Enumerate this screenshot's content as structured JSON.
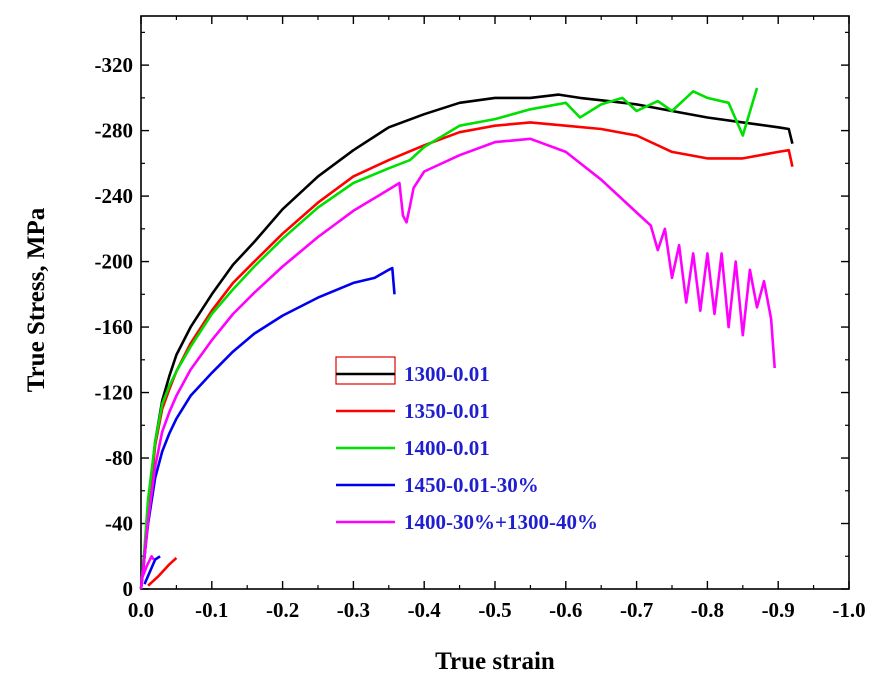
{
  "chart_data": {
    "type": "line",
    "xlabel": "True strain",
    "ylabel": "True Stress, MPa",
    "xlim": [
      0.0,
      -1.0
    ],
    "ylim": [
      0,
      -350
    ],
    "x_ticks": [
      "0.0",
      "-0.1",
      "-0.2",
      "-0.3",
      "-0.4",
      "-0.5",
      "-0.6",
      "-0.7",
      "-0.8",
      "-0.9",
      "-1.0"
    ],
    "y_ticks": [
      "0",
      "-40",
      "-80",
      "-120",
      "-160",
      "-200",
      "-240",
      "-280",
      "-320"
    ],
    "legend_position": "center-left",
    "series": [
      {
        "name": "1300-0.01",
        "color": "#000000",
        "x": [
          0,
          -0.005,
          -0.01,
          -0.015,
          -0.02,
          -0.03,
          -0.04,
          -0.05,
          -0.07,
          -0.1,
          -0.13,
          -0.16,
          -0.2,
          -0.25,
          -0.3,
          -0.35,
          -0.4,
          -0.45,
          -0.5,
          -0.55,
          -0.59,
          -0.62,
          -0.66,
          -0.7,
          -0.75,
          -0.8,
          -0.85,
          -0.9,
          -0.915,
          -0.92
        ],
        "y": [
          0,
          -20,
          -45,
          -70,
          -90,
          -115,
          -130,
          -143,
          -160,
          -180,
          -198,
          -212,
          -232,
          -252,
          -268,
          -282,
          -290,
          -297,
          -300,
          -300,
          -302,
          -300,
          -298,
          -296,
          -292,
          -288,
          -285,
          -282,
          -281,
          -272
        ]
      },
      {
        "name": "1350-0.01",
        "color": "#ff0000",
        "x": [
          0,
          -0.005,
          -0.01,
          -0.02,
          -0.03,
          -0.04,
          -0.05,
          -0.07,
          -0.1,
          -0.13,
          -0.16,
          -0.2,
          -0.25,
          -0.3,
          -0.35,
          -0.4,
          -0.45,
          -0.5,
          -0.55,
          -0.6,
          -0.65,
          -0.7,
          -0.75,
          -0.8,
          -0.85,
          -0.9,
          -0.915,
          -0.92
        ],
        "y": [
          0,
          -20,
          -45,
          -88,
          -110,
          -122,
          -133,
          -150,
          -170,
          -187,
          -200,
          -217,
          -236,
          -252,
          -262,
          -271,
          -279,
          -283,
          -285,
          -283,
          -281,
          -277,
          -267,
          -263,
          -263,
          -267,
          -268,
          -258
        ]
      },
      {
        "name": "1400-0.01",
        "color": "#00e000",
        "x": [
          0,
          -0.005,
          -0.01,
          -0.02,
          -0.03,
          -0.04,
          -0.05,
          -0.07,
          -0.1,
          -0.13,
          -0.16,
          -0.2,
          -0.25,
          -0.3,
          -0.35,
          -0.38,
          -0.4,
          -0.45,
          -0.5,
          -0.55,
          -0.6,
          -0.62,
          -0.65,
          -0.68,
          -0.7,
          -0.73,
          -0.75,
          -0.78,
          -0.8,
          -0.83,
          -0.85,
          -0.87
        ],
        "y": [
          0,
          -25,
          -55,
          -90,
          -113,
          -124,
          -133,
          -148,
          -168,
          -183,
          -197,
          -214,
          -233,
          -248,
          -257,
          -262,
          -270,
          -283,
          -287,
          -293,
          -297,
          -288,
          -296,
          -300,
          -292,
          -298,
          -292,
          -304,
          -300,
          -297,
          -277,
          -306
        ]
      },
      {
        "name": "1450-0.01-30%",
        "color": "#0000ee",
        "x": [
          0,
          -0.005,
          -0.01,
          -0.02,
          -0.03,
          -0.04,
          -0.05,
          -0.07,
          -0.1,
          -0.13,
          -0.16,
          -0.2,
          -0.25,
          -0.3,
          -0.33,
          -0.35,
          -0.355,
          -0.358
        ],
        "y": [
          0,
          -20,
          -40,
          -68,
          -84,
          -95,
          -104,
          -118,
          -132,
          -145,
          -156,
          -167,
          -178,
          -187,
          -190,
          -195,
          -196,
          -180
        ]
      },
      {
        "name": "1400-30%+1300-40%",
        "color": "#ff00ff",
        "x": [
          0,
          -0.005,
          -0.01,
          -0.02,
          -0.03,
          -0.04,
          -0.05,
          -0.07,
          -0.1,
          -0.13,
          -0.16,
          -0.2,
          -0.25,
          -0.3,
          -0.35,
          -0.365,
          -0.37,
          -0.375,
          -0.38,
          -0.385,
          -0.4,
          -0.45,
          -0.5,
          -0.55,
          -0.6,
          -0.65,
          -0.7,
          -0.72,
          -0.73,
          -0.74,
          -0.75,
          -0.76,
          -0.77,
          -0.78,
          -0.79,
          -0.8,
          -0.81,
          -0.82,
          -0.83,
          -0.84,
          -0.85,
          -0.86,
          -0.87,
          -0.88,
          -0.89,
          -0.895
        ],
        "y": [
          0,
          -20,
          -42,
          -75,
          -96,
          -108,
          -118,
          -134,
          -152,
          -168,
          -181,
          -197,
          -215,
          -231,
          -244,
          -248,
          -228,
          -224,
          -234,
          -245,
          -255,
          -265,
          -273,
          -275,
          -267,
          -250,
          -230,
          -222,
          -207,
          -220,
          -190,
          -210,
          -175,
          -205,
          -170,
          -205,
          -168,
          -205,
          -160,
          -200,
          -155,
          -195,
          -172,
          -188,
          -165,
          -135
        ]
      },
      {
        "name": "",
        "color": "#ff00ff",
        "x": [
          0,
          -0.008,
          -0.015,
          -0.018
        ],
        "y": [
          -5,
          -14,
          -20,
          -18
        ]
      },
      {
        "name": "",
        "color": "#0000ee",
        "x": [
          -0.005,
          -0.012,
          -0.02,
          -0.027
        ],
        "y": [
          -3,
          -10,
          -18,
          -20
        ]
      },
      {
        "name": "",
        "color": "#ff0000",
        "x": [
          -0.01,
          -0.025,
          -0.04,
          -0.05
        ],
        "y": [
          -2,
          -8,
          -15,
          -19
        ]
      }
    ]
  }
}
